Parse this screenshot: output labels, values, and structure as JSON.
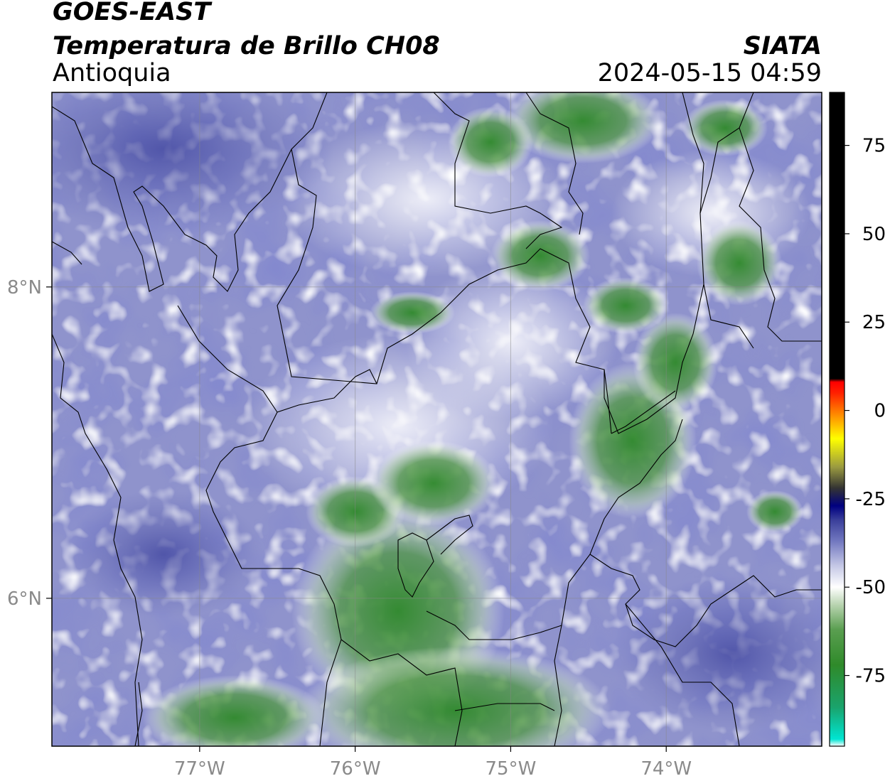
{
  "header": {
    "satellite": "GOES-EAST",
    "product": "Temperatura de Brillo CH08",
    "region": "Antioquia",
    "source": "SIATA",
    "datetime": "2024-05-15 04:59"
  },
  "map": {
    "lon_range": [
      -77.95,
      -73.0
    ],
    "lat_range": [
      5.05,
      9.25
    ],
    "lon_ticks": [
      {
        "value": -77,
        "label": "77°W"
      },
      {
        "value": -76,
        "label": "76°W"
      },
      {
        "value": -75,
        "label": "75°W"
      },
      {
        "value": -74,
        "label": "74°W"
      }
    ],
    "lat_ticks": [
      {
        "value": 8,
        "label": "8°N"
      },
      {
        "value": 6,
        "label": "6°N"
      }
    ],
    "grid": true
  },
  "colorbar": {
    "range": [
      -95,
      90
    ],
    "ticks": [
      {
        "value": 75,
        "label": "75"
      },
      {
        "value": 50,
        "label": "50"
      },
      {
        "value": 25,
        "label": "25"
      },
      {
        "value": 0,
        "label": "0"
      },
      {
        "value": -25,
        "label": "-25"
      },
      {
        "value": -50,
        "label": "-50"
      },
      {
        "value": -75,
        "label": "-75"
      }
    ],
    "stops": [
      {
        "v": -95,
        "color": "#ffffff"
      },
      {
        "v": -93,
        "color": "#00e5d2"
      },
      {
        "v": -84,
        "color": "#1aa36c"
      },
      {
        "v": -72,
        "color": "#2f8a2a"
      },
      {
        "v": -62,
        "color": "#5a9e50"
      },
      {
        "v": -55,
        "color": "#b8d4b0"
      },
      {
        "v": -50,
        "color": "#ffffff"
      },
      {
        "v": -44,
        "color": "#c5c8e6"
      },
      {
        "v": -37,
        "color": "#7278c0"
      },
      {
        "v": -31,
        "color": "#3a3f9a"
      },
      {
        "v": -27,
        "color": "#000080"
      },
      {
        "v": -22,
        "color": "#333333"
      },
      {
        "v": -16,
        "color": "#9a9a40"
      },
      {
        "v": -8,
        "color": "#ffff00"
      },
      {
        "v": -2,
        "color": "#ff9900"
      },
      {
        "v": 5,
        "color": "#ff2000"
      },
      {
        "v": 8,
        "color": "#ff0000"
      },
      {
        "v": 9,
        "color": "#000000"
      },
      {
        "v": 90,
        "color": "#000000"
      }
    ]
  }
}
